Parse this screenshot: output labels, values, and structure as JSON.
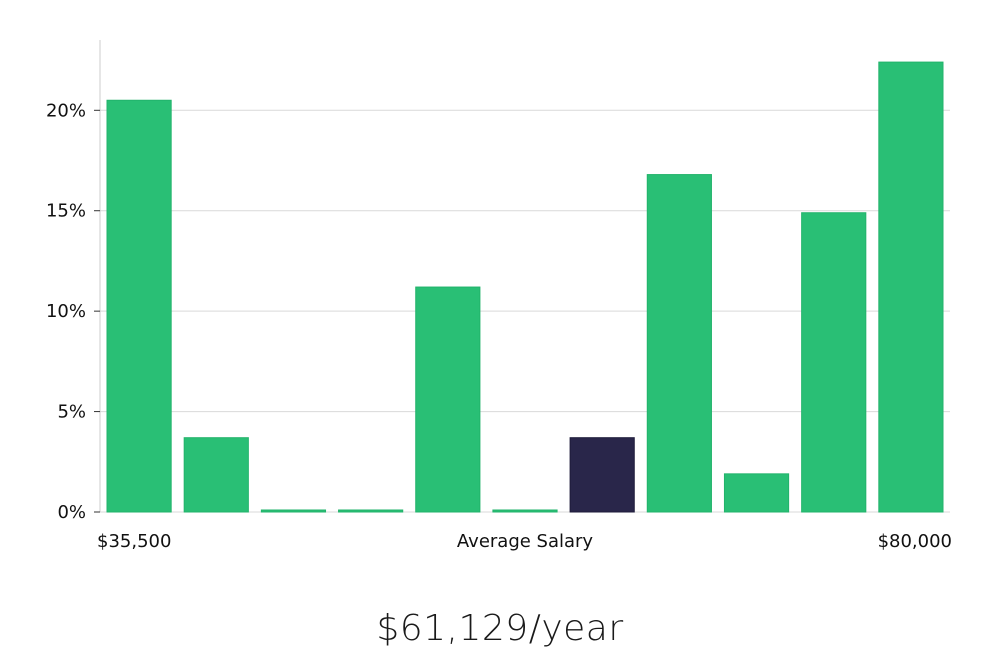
{
  "colors": {
    "bar": "#29bf75",
    "highlight": "#29264a",
    "grid": "#d9d9d9",
    "axis": "#cccccc"
  },
  "chart_data": {
    "type": "bar",
    "categories": [
      "1",
      "2",
      "3",
      "4",
      "5",
      "6",
      "7",
      "8",
      "9",
      "10",
      "11"
    ],
    "values": [
      20.5,
      3.7,
      0,
      0,
      11.2,
      0,
      3.7,
      16.8,
      1.9,
      14.9,
      22.4
    ],
    "highlight_index": 6,
    "ylim": [
      0,
      23.5
    ],
    "yticks": [
      0,
      5,
      10,
      15,
      20
    ],
    "ytick_labels": [
      "0%",
      "5%",
      "10%",
      "15%",
      "20%"
    ],
    "grid": true,
    "x_labels": {
      "left": "$35,500",
      "center": "Average Salary",
      "right": "$80,000"
    }
  },
  "summary": {
    "average_salary": "$61,129/year"
  }
}
